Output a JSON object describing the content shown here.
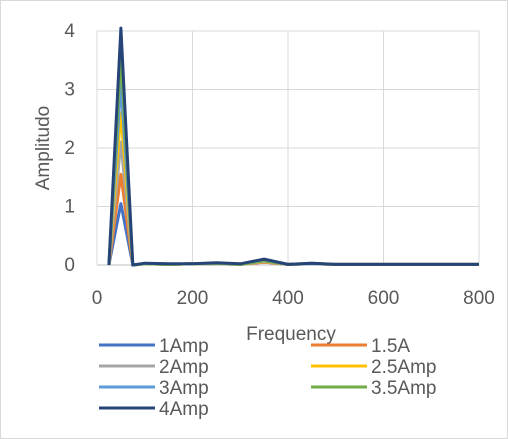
{
  "chart_data": {
    "type": "line",
    "xlabel": "Frequency",
    "ylabel": "Amplitudo",
    "xlim": [
      0,
      800
    ],
    "ylim": [
      0,
      4
    ],
    "xticks": [
      0,
      200,
      400,
      600,
      800
    ],
    "yticks": [
      0,
      1,
      2,
      3,
      4
    ],
    "grid": true,
    "legend_position": "bottom",
    "x": [
      25,
      50,
      75,
      100,
      150,
      200,
      250,
      300,
      350,
      400,
      450,
      500,
      600,
      700,
      800
    ],
    "series": [
      {
        "name": "1Amp",
        "color": "#4472C4",
        "values": [
          0,
          1.05,
          0,
          0.02,
          0.01,
          0.02,
          0.02,
          0.01,
          0.05,
          0.01,
          0.02,
          0.01,
          0.01,
          0.01,
          0.01
        ]
      },
      {
        "name": "1.5A",
        "color": "#ED7D31",
        "values": [
          0,
          1.55,
          0,
          0.02,
          0.01,
          0.02,
          0.02,
          0.01,
          0.05,
          0.01,
          0.02,
          0.01,
          0.01,
          0.01,
          0.01
        ]
      },
      {
        "name": "2Amp",
        "color": "#A5A5A5",
        "values": [
          0,
          2.1,
          0,
          0.02,
          0.01,
          0.02,
          0.02,
          0.01,
          0.06,
          0.01,
          0.02,
          0.01,
          0.01,
          0.01,
          0.01
        ]
      },
      {
        "name": "2.5Amp",
        "color": "#FFC000",
        "values": [
          0,
          2.6,
          0,
          0.02,
          0.01,
          0.02,
          0.03,
          0.01,
          0.06,
          0.01,
          0.02,
          0.01,
          0.01,
          0.01,
          0.01
        ]
      },
      {
        "name": "3Amp",
        "color": "#5B9BD5",
        "values": [
          0,
          3.1,
          0,
          0.02,
          0.01,
          0.02,
          0.03,
          0.01,
          0.07,
          0.01,
          0.02,
          0.01,
          0.01,
          0.01,
          0.01
        ]
      },
      {
        "name": "3.5Amp",
        "color": "#70AD47",
        "values": [
          0,
          3.6,
          0,
          0.02,
          0.01,
          0.02,
          0.03,
          0.01,
          0.08,
          0.01,
          0.03,
          0.01,
          0.01,
          0.01,
          0.01
        ]
      },
      {
        "name": "4Amp",
        "color": "#264478",
        "values": [
          0,
          4.05,
          0,
          0.03,
          0.02,
          0.02,
          0.04,
          0.02,
          0.1,
          0.01,
          0.03,
          0.01,
          0.01,
          0.01,
          0.01
        ]
      }
    ]
  }
}
